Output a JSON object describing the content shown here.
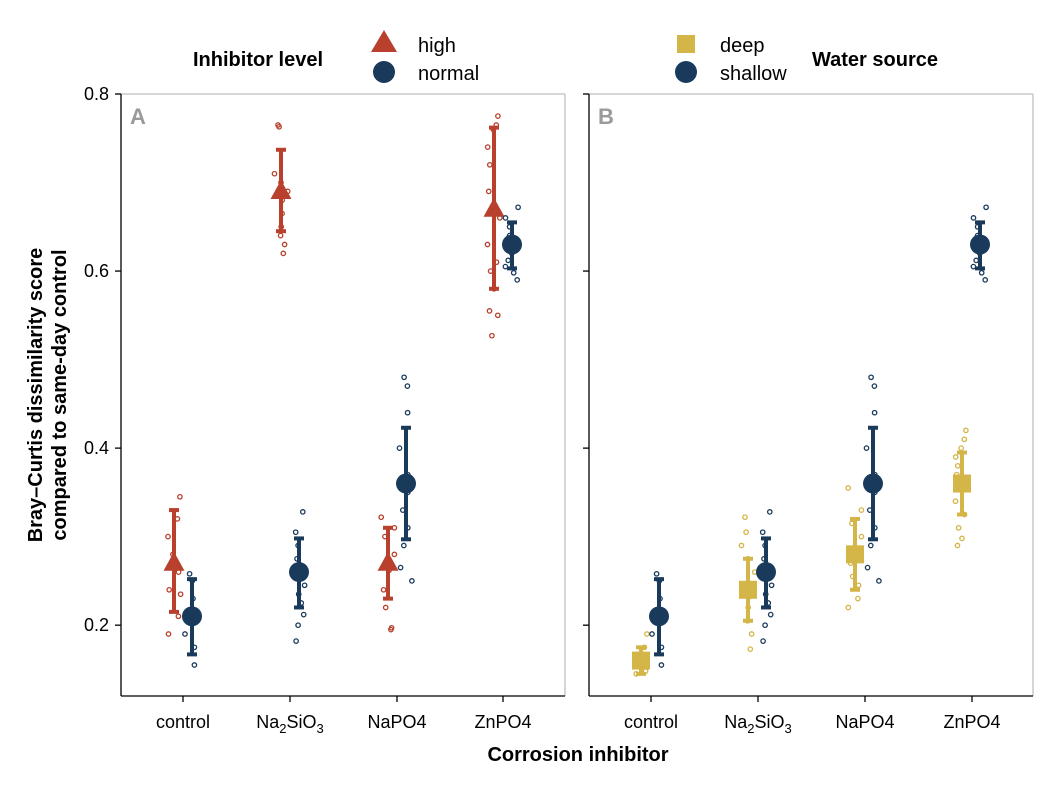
{
  "chart_data": {
    "type": "scatter",
    "xlabel": "Corrosion inhibitor",
    "ylabel_line1": "Bray–Curtis dissimilarity score",
    "ylabel_line2": "compared to same-day control",
    "ylim": [
      0.12,
      0.82
    ],
    "yticks": [
      0.2,
      0.4,
      0.6,
      0.8
    ],
    "categories": [
      "control",
      "Na2SiO3",
      "NaPO4",
      "ZnPO4"
    ],
    "grid": false,
    "panels": [
      {
        "tag": "A",
        "legend_title": "Inhibitor level",
        "legend_placement": "top-left",
        "series": [
          {
            "name": "high",
            "color": "#b8402c",
            "marker": "triangle",
            "means": [
              0.27,
              0.69,
              0.27,
              0.67
            ],
            "lower": [
              0.215,
              0.645,
              0.23,
              0.58
            ],
            "upper": [
              0.33,
              0.737,
              0.31,
              0.762
            ],
            "points": [
              [
                0.345,
                0.32,
                0.3,
                0.28,
                0.26,
                0.24,
                0.21,
                0.19,
                0.235,
                0.265
              ],
              [
                0.765,
                0.763,
                0.71,
                0.7,
                0.69,
                0.68,
                0.665,
                0.65,
                0.64,
                0.63,
                0.62
              ],
              [
                0.322,
                0.31,
                0.3,
                0.28,
                0.262,
                0.24,
                0.22,
                0.197,
                0.195
              ],
              [
                0.775,
                0.765,
                0.76,
                0.74,
                0.72,
                0.69,
                0.66,
                0.63,
                0.61,
                0.6,
                0.58,
                0.555,
                0.55,
                0.527
              ]
            ]
          },
          {
            "name": "normal",
            "color": "#1a3a5c",
            "marker": "circle",
            "means": [
              0.21,
              0.26,
              0.36,
              0.63
            ],
            "lower": [
              0.167,
              0.22,
              0.297,
              0.603
            ],
            "upper": [
              0.252,
              0.298,
              0.423,
              0.655
            ],
            "points": [
              [
                0.258,
                0.25,
                0.23,
                0.21,
                0.19,
                0.175,
                0.155
              ],
              [
                0.328,
                0.305,
                0.29,
                0.275,
                0.265,
                0.255,
                0.245,
                0.235,
                0.225,
                0.212,
                0.2,
                0.182
              ],
              [
                0.48,
                0.47,
                0.44,
                0.4,
                0.37,
                0.35,
                0.33,
                0.31,
                0.29,
                0.265,
                0.25
              ],
              [
                0.672,
                0.66,
                0.65,
                0.64,
                0.63,
                0.62,
                0.612,
                0.605,
                0.598,
                0.59
              ]
            ]
          }
        ]
      },
      {
        "tag": "B",
        "legend_title": "Water source",
        "legend_placement": "top-right",
        "series": [
          {
            "name": "deep",
            "color": "#d4b548",
            "marker": "square",
            "means": [
              0.16,
              0.24,
              0.28,
              0.36
            ],
            "lower": [
              0.145,
              0.205,
              0.24,
              0.325
            ],
            "upper": [
              0.175,
              0.275,
              0.32,
              0.395
            ],
            "points": [
              [
                0.19,
                0.175,
                0.165,
                0.155,
                0.148,
                0.145
              ],
              [
                0.322,
                0.305,
                0.29,
                0.275,
                0.26,
                0.245,
                0.232,
                0.22,
                0.205,
                0.19,
                0.173
              ],
              [
                0.355,
                0.33,
                0.315,
                0.3,
                0.285,
                0.27,
                0.255,
                0.245,
                0.23,
                0.22
              ],
              [
                0.42,
                0.41,
                0.4,
                0.39,
                0.38,
                0.37,
                0.355,
                0.34,
                0.325,
                0.31,
                0.298,
                0.29
              ]
            ]
          },
          {
            "name": "shallow",
            "color": "#1a3a5c",
            "marker": "circle",
            "means": [
              0.21,
              0.26,
              0.36,
              0.63
            ],
            "lower": [
              0.167,
              0.22,
              0.297,
              0.603
            ],
            "upper": [
              0.252,
              0.298,
              0.423,
              0.655
            ],
            "points": [
              [
                0.258,
                0.25,
                0.23,
                0.21,
                0.19,
                0.175,
                0.155
              ],
              [
                0.328,
                0.305,
                0.29,
                0.275,
                0.265,
                0.255,
                0.245,
                0.235,
                0.225,
                0.212,
                0.2,
                0.182
              ],
              [
                0.48,
                0.47,
                0.44,
                0.4,
                0.37,
                0.35,
                0.33,
                0.31,
                0.29,
                0.265,
                0.25
              ],
              [
                0.672,
                0.66,
                0.65,
                0.64,
                0.63,
                0.62,
                0.612,
                0.605,
                0.598,
                0.59
              ]
            ]
          }
        ]
      }
    ]
  }
}
